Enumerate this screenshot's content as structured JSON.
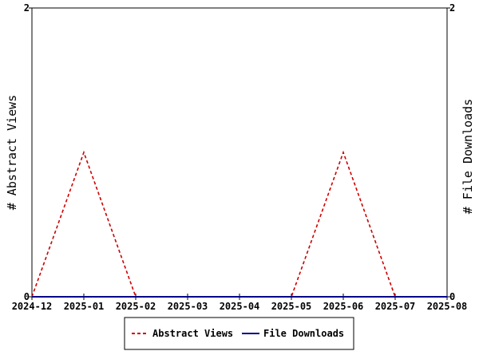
{
  "chart_data": {
    "type": "line",
    "title": "",
    "x_ticks": [
      "2024-12",
      "2025-01",
      "2025-02",
      "2025-03",
      "2025-04",
      "2025-05",
      "2025-06",
      "2025-07",
      "2025-08"
    ],
    "y_left": {
      "label": "# Abstract Views",
      "range": [
        0,
        2
      ],
      "ticks": [
        "0",
        "2"
      ]
    },
    "y_right": {
      "label": "# File Downloads",
      "range": [
        0,
        2
      ],
      "ticks": [
        "0",
        "2"
      ]
    },
    "grid": false,
    "legend_position": "bottom",
    "series": [
      {
        "name": "Abstract Views",
        "axis": "left",
        "style": "dashed",
        "color": "#cc0000",
        "x": [
          "2024-12",
          "2025-01",
          "2025-02",
          "2025-03",
          "2025-04",
          "2025-05",
          "2025-06",
          "2025-07",
          "2025-08"
        ],
        "y": [
          0,
          1,
          0,
          0,
          0,
          0,
          1,
          0,
          0
        ]
      },
      {
        "name": "File Downloads",
        "axis": "right",
        "style": "solid",
        "color": "#00008b",
        "x": [
          "2024-12",
          "2025-01",
          "2025-02",
          "2025-03",
          "2025-04",
          "2025-05",
          "2025-06",
          "2025-07",
          "2025-08"
        ],
        "y": [
          0,
          0,
          0,
          0,
          0,
          0,
          0,
          0,
          0
        ]
      }
    ]
  }
}
